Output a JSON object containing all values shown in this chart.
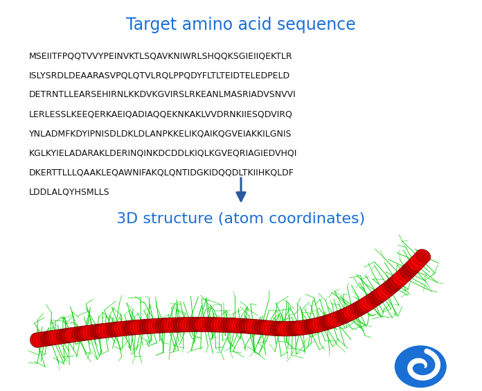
{
  "title": "Target amino acid sequence",
  "title_color": "#1a6fd4",
  "title_fontsize": 17,
  "sequence_lines": [
    "MSEIITFPQQTVVYPEINVKTLSQAVKNIWRLSHQQKSGIEIIQEKTLR",
    "ISLYSRDLDEAARASVPQLQTVLRQLPPQDYFLTLTEIDTELEDPELD",
    "DETRNTLLEARSEHIRNLKKDVKGVIRSLRKEANLMASRIADVSNVVI",
    "LERLESSLKEEQERKAEIQADIAQQEKNKAKLVVDRNKIIESQDVIRQ",
    "YNLADMFKDYIPNISDLDKLDLANPKKELIKQAIKQGVEIAKKILGNIS",
    "KGLKYIELADARAKLDERINQINKDCDDLKIQLKGVEQRIAGIEDVHQI",
    "DKERTTLLLQAAKLEQAWNIFAKQLQNTIDGKIDQQDLTKIIHKQLDF",
    "LDDLALQYHSMLLS"
  ],
  "sequence_fontsize": 9.0,
  "sequence_color": "#111111",
  "subtitle": "3D structure (atom coordinates)",
  "subtitle_color": "#1a6fd4",
  "subtitle_fontsize": 16,
  "arrow_color": "#2a5a9f",
  "bg_color": "#ffffff",
  "logo_color": "#1a6fd4"
}
